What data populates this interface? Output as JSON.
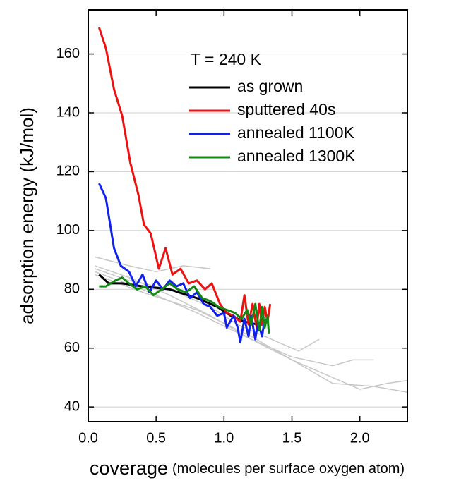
{
  "chart_data": {
    "type": "line",
    "ylabel": "adsorption energy (kJ/mol)",
    "xlabel": "coverage",
    "xlabel_note": "(molecules per surface oxygen atom)",
    "legend_title": "T = 240 K",
    "xlim": [
      0,
      2.35
    ],
    "ylim": [
      35,
      175
    ],
    "xticks": [
      {
        "value": 0,
        "label": "0.0"
      },
      0.5,
      {
        "value": 1,
        "label": "1.0"
      },
      1.5,
      {
        "value": 2,
        "label": "2.0"
      }
    ],
    "yticks": [
      40,
      60,
      80,
      100,
      120,
      140,
      160
    ],
    "grid": true,
    "series": [
      {
        "color": "#c8c8c8",
        "x": [
          0.05,
          0.3,
          0.5,
          0.7,
          0.9
        ],
        "values": [
          91,
          88,
          86,
          88,
          87
        ]
      },
      {
        "color": "#c8c8c8",
        "x": [
          0.05,
          0.3,
          0.6,
          0.9,
          1.1,
          1.4,
          1.55,
          1.7
        ],
        "values": [
          87,
          83,
          80,
          74,
          68,
          62,
          59,
          63
        ]
      },
      {
        "color": "#c8c8c8",
        "x": [
          0.05,
          0.3,
          0.6,
          0.9,
          1.2,
          1.5,
          1.8,
          1.95,
          2.1
        ],
        "values": [
          88,
          84,
          78,
          71,
          63,
          57,
          54,
          56,
          56
        ]
      },
      {
        "color": "#c8c8c8",
        "x": [
          0.05,
          0.4,
          0.8,
          1.2,
          1.5,
          1.8,
          2.0,
          2.2,
          2.35
        ],
        "values": [
          86,
          80,
          72,
          63,
          56,
          50,
          46,
          48,
          49
        ]
      },
      {
        "color": "#c8c8c8",
        "x": [
          0.05,
          0.4,
          0.8,
          1.2,
          1.5,
          1.8,
          2.1,
          2.35
        ],
        "values": [
          85,
          79,
          73,
          64,
          56,
          48,
          47,
          45
        ]
      },
      {
        "name": "as grown",
        "color": "#000000",
        "x": [
          0.08,
          0.15,
          0.25,
          0.4,
          0.6,
          0.8,
          0.95,
          1.05,
          1.15,
          1.25,
          1.3
        ],
        "values": [
          85,
          82,
          82,
          81,
          80,
          77,
          74,
          71,
          69,
          68,
          68
        ]
      },
      {
        "name": "sputtered 40s",
        "color": "#ee1111",
        "x": [
          0.08,
          0.13,
          0.19,
          0.25,
          0.31,
          0.37,
          0.41,
          0.46,
          0.52,
          0.57,
          0.62,
          0.68,
          0.74,
          0.8,
          0.86,
          0.91,
          0.97,
          1.02,
          1.07,
          1.12,
          1.15,
          1.18,
          1.21,
          1.24,
          1.26,
          1.28,
          1.3,
          1.32,
          1.34
        ],
        "values": [
          169,
          162,
          148,
          139,
          123,
          112,
          102,
          99,
          87,
          94,
          85,
          87,
          82,
          83,
          80,
          82,
          75,
          72,
          71,
          69,
          78,
          68,
          75,
          67,
          75,
          68,
          74,
          69,
          75
        ]
      },
      {
        "name": "annealed 1100K",
        "color": "#1122ee",
        "x": [
          0.08,
          0.13,
          0.19,
          0.24,
          0.3,
          0.35,
          0.4,
          0.45,
          0.5,
          0.55,
          0.6,
          0.65,
          0.7,
          0.75,
          0.8,
          0.85,
          0.9,
          0.95,
          1.0,
          1.02,
          1.07,
          1.1,
          1.12,
          1.15,
          1.18,
          1.2,
          1.23,
          1.25,
          1.28,
          1.3
        ],
        "values": [
          116,
          111,
          94,
          88,
          86,
          81,
          85,
          79,
          83,
          80,
          83,
          81,
          82,
          77,
          79,
          75,
          74,
          71,
          72,
          67,
          71,
          67,
          62,
          70,
          64,
          71,
          63,
          69,
          64,
          70
        ]
      },
      {
        "name": "annealed 1300K",
        "color": "#118811",
        "x": [
          0.08,
          0.13,
          0.2,
          0.25,
          0.3,
          0.36,
          0.42,
          0.48,
          0.54,
          0.6,
          0.66,
          0.72,
          0.78,
          0.84,
          0.9,
          0.96,
          1.02,
          1.08,
          1.13,
          1.17,
          1.2,
          1.23,
          1.26,
          1.28,
          1.3,
          1.32,
          1.33
        ],
        "values": [
          81,
          81,
          83,
          84,
          82,
          80,
          81,
          78,
          80,
          82,
          80,
          79,
          81,
          77,
          76,
          74,
          73,
          72,
          70,
          73,
          68,
          75,
          66,
          74,
          67,
          71,
          65
        ]
      }
    ]
  }
}
